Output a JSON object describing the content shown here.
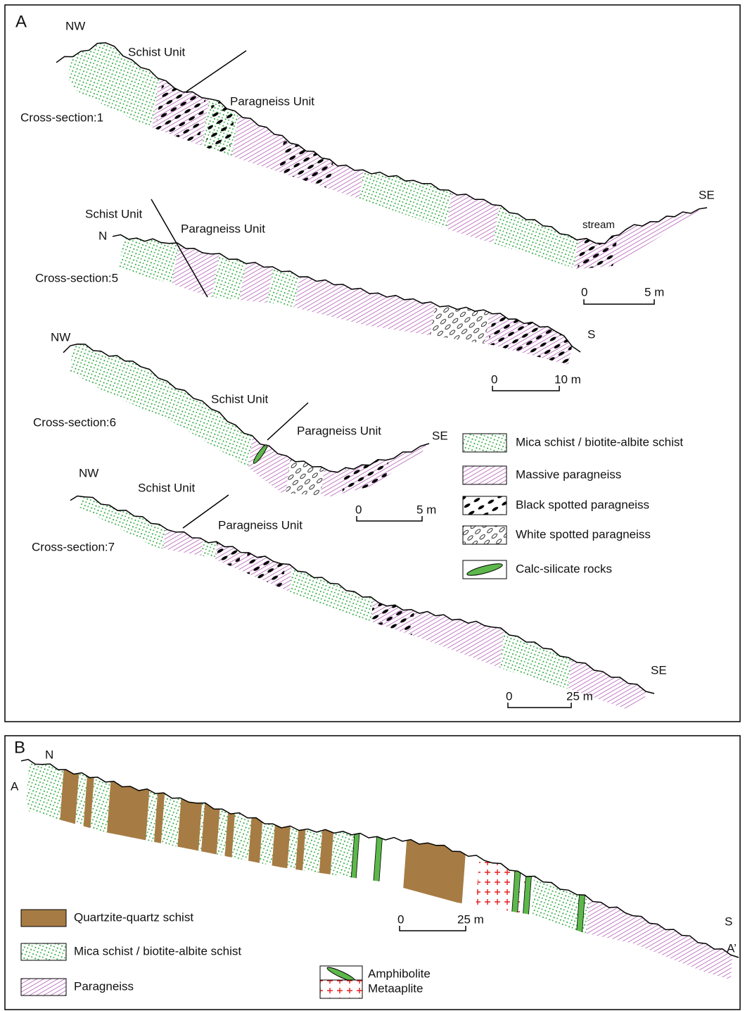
{
  "panel_a": {
    "label": "A",
    "sections": [
      {
        "title": "Cross-section:1",
        "start": "NW",
        "end": "SE",
        "schist": "Schist Unit",
        "paragneiss": "Paragneiss Unit",
        "note": "stream",
        "scale": {
          "zero": "0",
          "length": "5 m"
        }
      },
      {
        "title": "Cross-section:5",
        "start": "N",
        "end": "S",
        "schist": "Schist Unit",
        "paragneiss": "Paragneiss Unit",
        "scale": {
          "zero": "0",
          "length": "10 m"
        }
      },
      {
        "title": "Cross-section:6",
        "start": "NW",
        "end": "SE",
        "schist": "Schist Unit",
        "paragneiss": "Paragneiss Unit",
        "scale": {
          "zero": "0",
          "length": "5 m"
        }
      },
      {
        "title": "Cross-section:7",
        "start": "NW",
        "end": "SE",
        "schist": "Schist Unit",
        "paragneiss": "Paragneiss Unit",
        "scale": {
          "zero": "0",
          "length": "25 m"
        }
      }
    ],
    "legend": [
      "Mica schist / biotite-albite schist",
      "Massive paragneiss",
      "Black spotted paragneiss",
      "White spotted paragneiss",
      "Calc-silicate rocks"
    ]
  },
  "panel_b": {
    "label": "B",
    "start": "N",
    "start_point": "A",
    "end": "S",
    "end_point": "A’",
    "scale": {
      "zero": "0",
      "length": "25 m"
    },
    "legend": [
      "Quartzite-quartz schist",
      "Mica schist / biotite-albite schist",
      "Paragneiss",
      "Amphibolite",
      "Metaaplite"
    ]
  }
}
